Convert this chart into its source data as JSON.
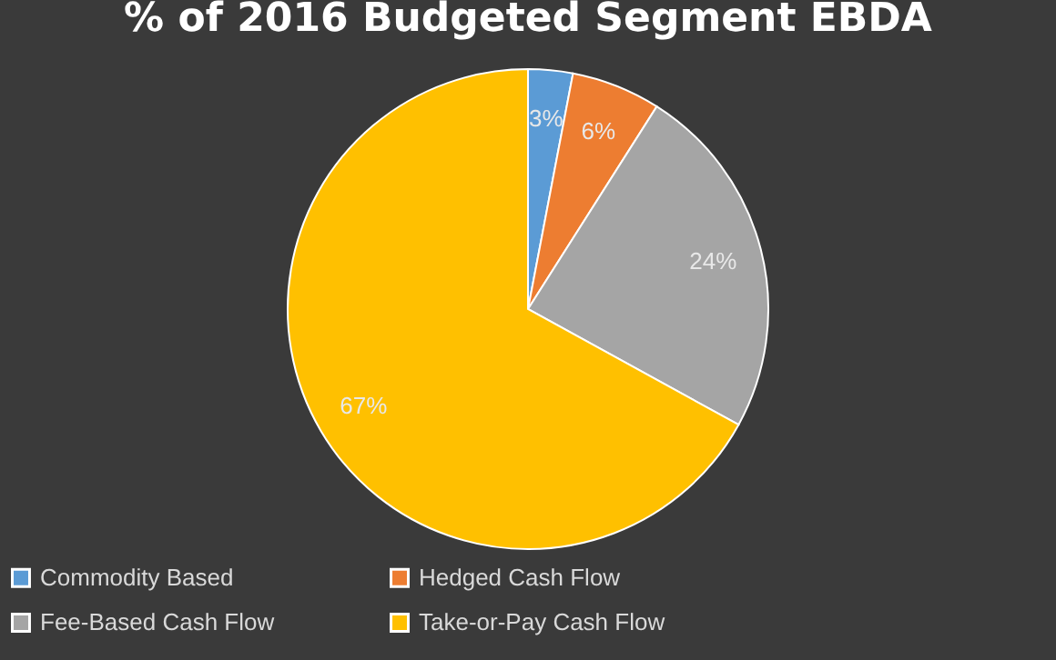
{
  "chart_data": {
    "type": "pie",
    "title": "% of 2016 Budgeted Segment EBDA",
    "categories": [
      "Commodity Based",
      "Hedged Cash Flow",
      "Fee-Based Cash Flow",
      "Take-or-Pay Cash Flow"
    ],
    "values": [
      3,
      6,
      24,
      67
    ],
    "colors": [
      "#5b9bd5",
      "#ed7d31",
      "#a5a5a5",
      "#ffc000"
    ],
    "value_labels": [
      "3%",
      "6%",
      "24%",
      "67%"
    ],
    "legend": "bottom"
  }
}
